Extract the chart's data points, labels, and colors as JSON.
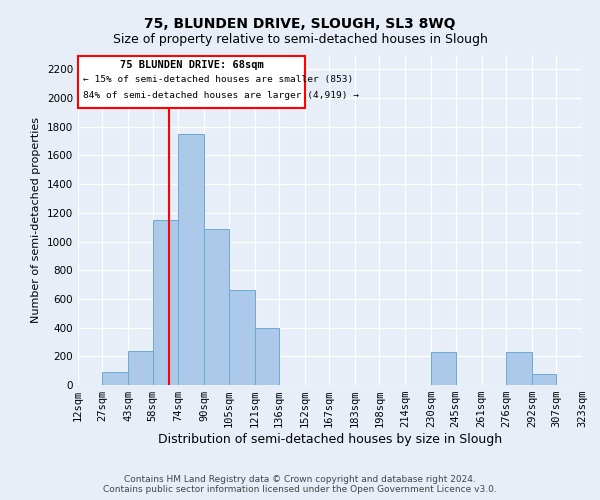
{
  "title": "75, BLUNDEN DRIVE, SLOUGH, SL3 8WQ",
  "subtitle": "Size of property relative to semi-detached houses in Slough",
  "xlabel": "Distribution of semi-detached houses by size in Slough",
  "ylabel": "Number of semi-detached properties",
  "footer1": "Contains HM Land Registry data © Crown copyright and database right 2024.",
  "footer2": "Contains public sector information licensed under the Open Government Licence v3.0.",
  "annotation_title": "75 BLUNDEN DRIVE: 68sqm",
  "annotation_line1": "← 15% of semi-detached houses are smaller (853)",
  "annotation_line2": "84% of semi-detached houses are larger (4,919) →",
  "property_size": 68,
  "bar_color": "#adc9e9",
  "bar_edge_color": "#6aaad4",
  "vline_color": "red",
  "box_color": "red",
  "categories": [
    "12sqm",
    "27sqm",
    "43sqm",
    "58sqm",
    "74sqm",
    "90sqm",
    "105sqm",
    "121sqm",
    "136sqm",
    "152sqm",
    "167sqm",
    "183sqm",
    "198sqm",
    "214sqm",
    "230sqm",
    "245sqm",
    "261sqm",
    "276sqm",
    "292sqm",
    "307sqm",
    "323sqm"
  ],
  "bin_edges": [
    12,
    27,
    43,
    58,
    74,
    90,
    105,
    121,
    136,
    152,
    167,
    183,
    198,
    214,
    230,
    245,
    261,
    276,
    292,
    307,
    323
  ],
  "values": [
    0,
    90,
    240,
    1150,
    1750,
    1090,
    660,
    400,
    0,
    0,
    0,
    0,
    0,
    0,
    230,
    0,
    0,
    230,
    80,
    0,
    0
  ],
  "ylim": [
    0,
    2300
  ],
  "yticks": [
    0,
    200,
    400,
    600,
    800,
    1000,
    1200,
    1400,
    1600,
    1800,
    2000,
    2200
  ],
  "background_color": "#e8eef8",
  "plot_bg_color": "#e8eef8",
  "title_fontsize": 10,
  "subtitle_fontsize": 9,
  "ylabel_fontsize": 8,
  "xlabel_fontsize": 9,
  "tick_fontsize": 7.5,
  "footer_fontsize": 6.5
}
